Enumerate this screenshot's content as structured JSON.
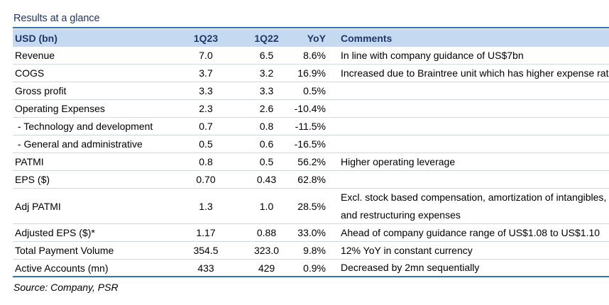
{
  "title": "Results at a glance",
  "headers": {
    "label": "USD (bn)",
    "q23": "1Q23",
    "q22": "1Q22",
    "yoy": "YoY",
    "comments": "Comments"
  },
  "rows": [
    {
      "label": "Revenue",
      "q23": "7.0",
      "q22": "6.5",
      "yoy": "8.6%",
      "comment": "In line with company guidance of US$7bn",
      "comment2": ""
    },
    {
      "label": "COGS",
      "q23": "3.7",
      "q22": "3.2",
      "yoy": "16.9%",
      "comment": "Increased due to Braintree unit which has higher expense rates",
      "comment2": ""
    },
    {
      "label": "Gross profit",
      "q23": "3.3",
      "q22": "3.3",
      "yoy": "0.5%",
      "comment": "",
      "comment2": ""
    },
    {
      "label": "Operating Expenses",
      "q23": "2.3",
      "q22": "2.6",
      "yoy": "-10.4%",
      "comment": "",
      "comment2": ""
    },
    {
      "label": " - Technology and development",
      "q23": "0.7",
      "q22": "0.8",
      "yoy": "-11.5%",
      "comment": "",
      "comment2": ""
    },
    {
      "label": " - General and administrative",
      "q23": "0.5",
      "q22": "0.6",
      "yoy": "-16.5%",
      "comment": "",
      "comment2": ""
    },
    {
      "label": "PATMI",
      "q23": "0.8",
      "q22": "0.5",
      "yoy": "56.2%",
      "comment": "Higher operating leverage",
      "comment2": ""
    },
    {
      "label": "EPS ($)",
      "q23": "0.70",
      "q22": "0.43",
      "yoy": "62.8%",
      "comment": "",
      "comment2": ""
    },
    {
      "label": "Adj PATMI",
      "q23": "1.3",
      "q22": "1.0",
      "yoy": "28.5%",
      "comment": "Excl. stock based compensation, amortization of intangibles,",
      "comment2": "and restructuring expenses"
    },
    {
      "label": "Adjusted EPS ($)*",
      "q23": "1.17",
      "q22": "0.88",
      "yoy": "33.0%",
      "comment": "Ahead of company guidance range of US$1.08 to US$1.10",
      "comment2": ""
    },
    {
      "label": "Total Payment Volume",
      "q23": "354.5",
      "q22": "323.0",
      "yoy": "9.8%",
      "comment": "12% YoY in constant currency",
      "comment2": ""
    },
    {
      "label": "Active Accounts (mn)",
      "q23": "433",
      "q22": "429",
      "yoy": "0.9%",
      "comment": "Decreased by 2mn sequentially",
      "comment2": ""
    }
  ],
  "source": "Source: Company, PSR"
}
